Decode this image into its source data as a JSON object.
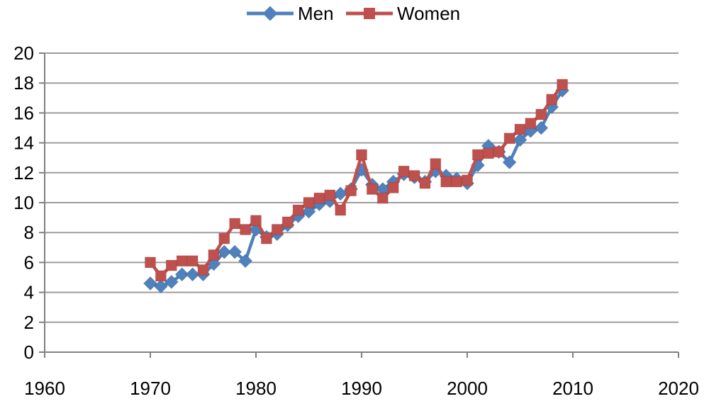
{
  "chart_data": {
    "type": "line",
    "title": "",
    "xlabel": "",
    "ylabel": "",
    "xlim": [
      1960,
      2020
    ],
    "ylim": [
      0,
      20
    ],
    "xticks": [
      1960,
      1970,
      1980,
      1990,
      2000,
      2010,
      2020
    ],
    "yticks": [
      0,
      2,
      4,
      6,
      8,
      10,
      12,
      14,
      16,
      18,
      20
    ],
    "grid": "horizontal",
    "legend_position": "top-center",
    "axis_color": "#808080",
    "grid_color": "#9d9d9d",
    "x": [
      1970,
      1971,
      1972,
      1973,
      1974,
      1975,
      1976,
      1977,
      1978,
      1979,
      1980,
      1981,
      1982,
      1983,
      1984,
      1985,
      1986,
      1987,
      1988,
      1989,
      1990,
      1991,
      1992,
      1993,
      1994,
      1995,
      1996,
      1997,
      1998,
      1999,
      2000,
      2001,
      2002,
      2003,
      2004,
      2005,
      2006,
      2007,
      2008,
      2009
    ],
    "series": [
      {
        "name": "Men",
        "color": "#4F81BD",
        "marker": "diamond",
        "values": [
          4.6,
          4.4,
          4.7,
          5.2,
          5.2,
          5.2,
          5.9,
          6.7,
          6.7,
          6.1,
          8.2,
          7.7,
          7.9,
          8.5,
          9.1,
          9.4,
          9.9,
          10.1,
          10.6,
          10.9,
          12.2,
          11.2,
          10.9,
          11.4,
          11.9,
          11.7,
          11.4,
          12.1,
          11.8,
          11.6,
          11.3,
          12.5,
          13.8,
          13.4,
          12.7,
          14.2,
          14.8,
          15.0,
          16.4,
          17.5
        ]
      },
      {
        "name": "Women",
        "color": "#C0504D",
        "marker": "square",
        "values": [
          6.0,
          5.1,
          5.8,
          6.1,
          6.1,
          5.5,
          6.5,
          7.6,
          8.6,
          8.2,
          8.8,
          7.6,
          8.2,
          8.7,
          9.5,
          10.0,
          10.3,
          10.5,
          9.5,
          10.8,
          13.2,
          10.9,
          10.3,
          11.0,
          12.1,
          11.8,
          11.3,
          12.6,
          11.4,
          11.4,
          11.5,
          13.2,
          13.3,
          13.4,
          14.3,
          14.9,
          15.3,
          15.9,
          16.9,
          17.9
        ]
      }
    ]
  }
}
